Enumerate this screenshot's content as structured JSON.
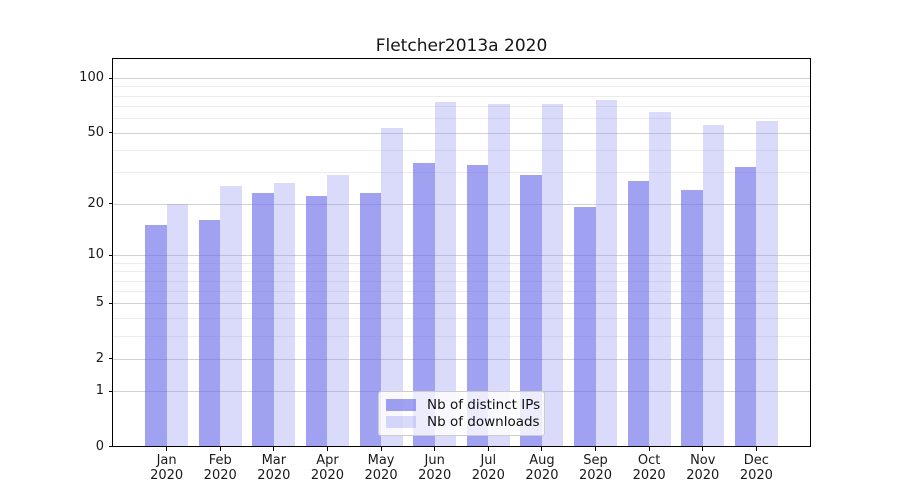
{
  "chart_data": {
    "type": "bar",
    "title": "Fletcher2013a 2020",
    "year": "2020",
    "months": [
      "Jan",
      "Feb",
      "Mar",
      "Apr",
      "May",
      "Jun",
      "Jul",
      "Aug",
      "Sep",
      "Oct",
      "Nov",
      "Dec"
    ],
    "categories": [
      "Jan 2020",
      "Feb 2020",
      "Mar 2020",
      "Apr 2020",
      "May 2020",
      "Jun 2020",
      "Jul 2020",
      "Aug 2020",
      "Sep 2020",
      "Oct 2020",
      "Nov 2020",
      "Dec 2020"
    ],
    "series": [
      {
        "name": "Nb of distinct IPs",
        "color": "rgba(104,104,232,0.62)",
        "approx_hex_on_white": "#a5a5f1",
        "values": [
          15,
          16,
          23,
          22,
          23,
          34,
          33,
          29,
          19,
          27,
          24,
          32
        ]
      },
      {
        "name": "Nb of downloads",
        "color": "rgba(150,150,240,0.35)",
        "approx_hex_on_white": "#dadaf8",
        "values": [
          20,
          25,
          26,
          29,
          53,
          74,
          72,
          72,
          76,
          65,
          55,
          58
        ]
      }
    ],
    "xlabel": "",
    "ylabel": "",
    "yscale": "log1p",
    "ylim": [
      0,
      129
    ],
    "yticks": [
      0,
      1,
      2,
      5,
      10,
      20,
      50,
      100
    ],
    "minor_gridlines": [
      3,
      4,
      6,
      7,
      8,
      9,
      30,
      40,
      60,
      70,
      80,
      90
    ],
    "grid": {
      "major_color": "#d2d2d2",
      "minor_color": "#ececec"
    },
    "legend_position": "lower center",
    "colors": {
      "text": "#1a1a1a",
      "spine": "#000000",
      "background": "#ffffff"
    }
  }
}
